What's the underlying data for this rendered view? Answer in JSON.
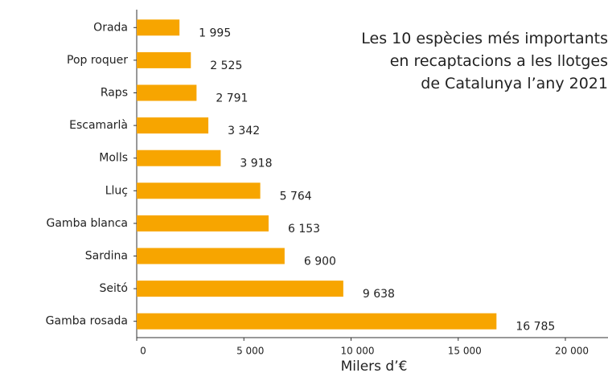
{
  "chart_data": {
    "type": "barh",
    "title": "Les 10 espècies més importants\nen recaptacions a les llotges\nde Catalunya l’any 2021",
    "xlabel": "Milers d’€",
    "categories": [
      "Orada",
      "Pop roquer",
      "Raps",
      "Escamarlà",
      "Molls",
      "Lluç",
      "Gamba blanca",
      "Sardina",
      "Seitó",
      "Gamba rosada"
    ],
    "values": [
      1995,
      2525,
      2791,
      3342,
      3918,
      5764,
      6153,
      6900,
      9638,
      16785
    ],
    "value_labels": [
      "1 995",
      "2 525",
      "2 791",
      "3 342",
      "3 918",
      "5 764",
      "6 153",
      "6 900",
      "9 638",
      "16 785"
    ],
    "color": "#f7a500",
    "xlim": [
      0,
      20000
    ],
    "xticks": [
      0,
      {
        "value": 5000,
        "label": "5 000"
      },
      {
        "value": 10000,
        "label": "10 000"
      },
      {
        "value": 15000,
        "label": "15 000"
      },
      {
        "value": 20000,
        "label": "20 000"
      }
    ]
  }
}
